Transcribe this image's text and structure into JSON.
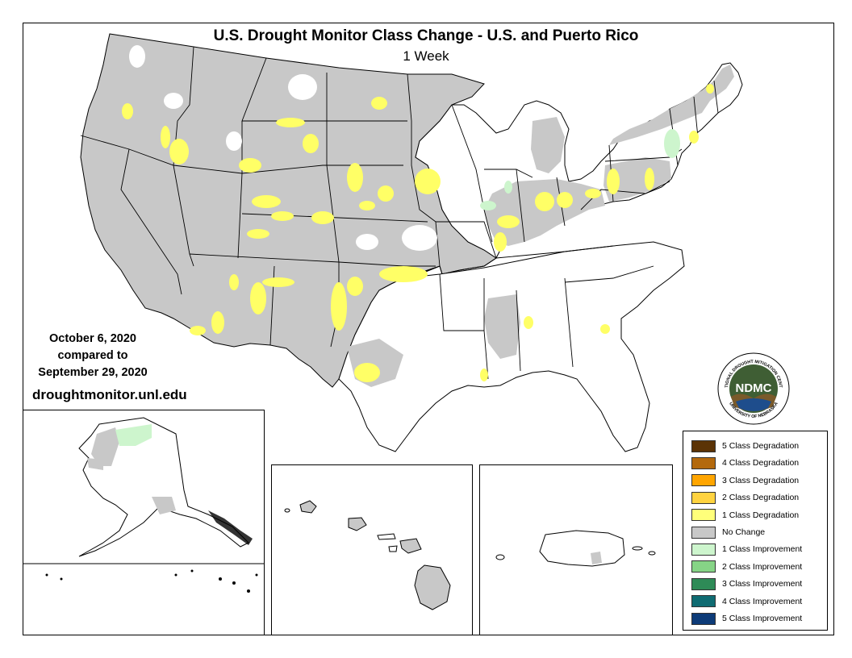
{
  "title": "U.S. Drought Monitor Class Change - U.S. and Puerto Rico",
  "subtitle": "1 Week",
  "date_current": "October 6, 2020",
  "date_compared": "compared to",
  "date_previous": "September 29, 2020",
  "url": "droughtmonitor.unl.edu",
  "logo": {
    "text": "NDMC",
    "ring_text": "NATIONAL DROUGHT MITIGATION CENTER",
    "ring_text_bottom": "UNIVERSITY OF NEBRASKA"
  },
  "colors": {
    "no_change": "#c8c8c8",
    "one_class_degradation": "#ffff66",
    "one_class_improvement": "#cdf5cd"
  },
  "legend": [
    {
      "label": "5 Class Degradation",
      "color": "#5b3306"
    },
    {
      "label": "4 Class Degradation",
      "color": "#b3690d"
    },
    {
      "label": "3 Class Degradation",
      "color": "#ffa500"
    },
    {
      "label": "2 Class Degradation",
      "color": "#ffd340"
    },
    {
      "label": "1 Class Degradation",
      "color": "#ffff7a"
    },
    {
      "label": "No Change",
      "color": "#c8c8c8"
    },
    {
      "label": "1 Class Improvement",
      "color": "#cdf5cd"
    },
    {
      "label": "2 Class Improvement",
      "color": "#86d486"
    },
    {
      "label": "3 Class Improvement",
      "color": "#2e8b57"
    },
    {
      "label": "4 Class Improvement",
      "color": "#0f6b72"
    },
    {
      "label": "5 Class Improvement",
      "color": "#0d3b78"
    }
  ]
}
